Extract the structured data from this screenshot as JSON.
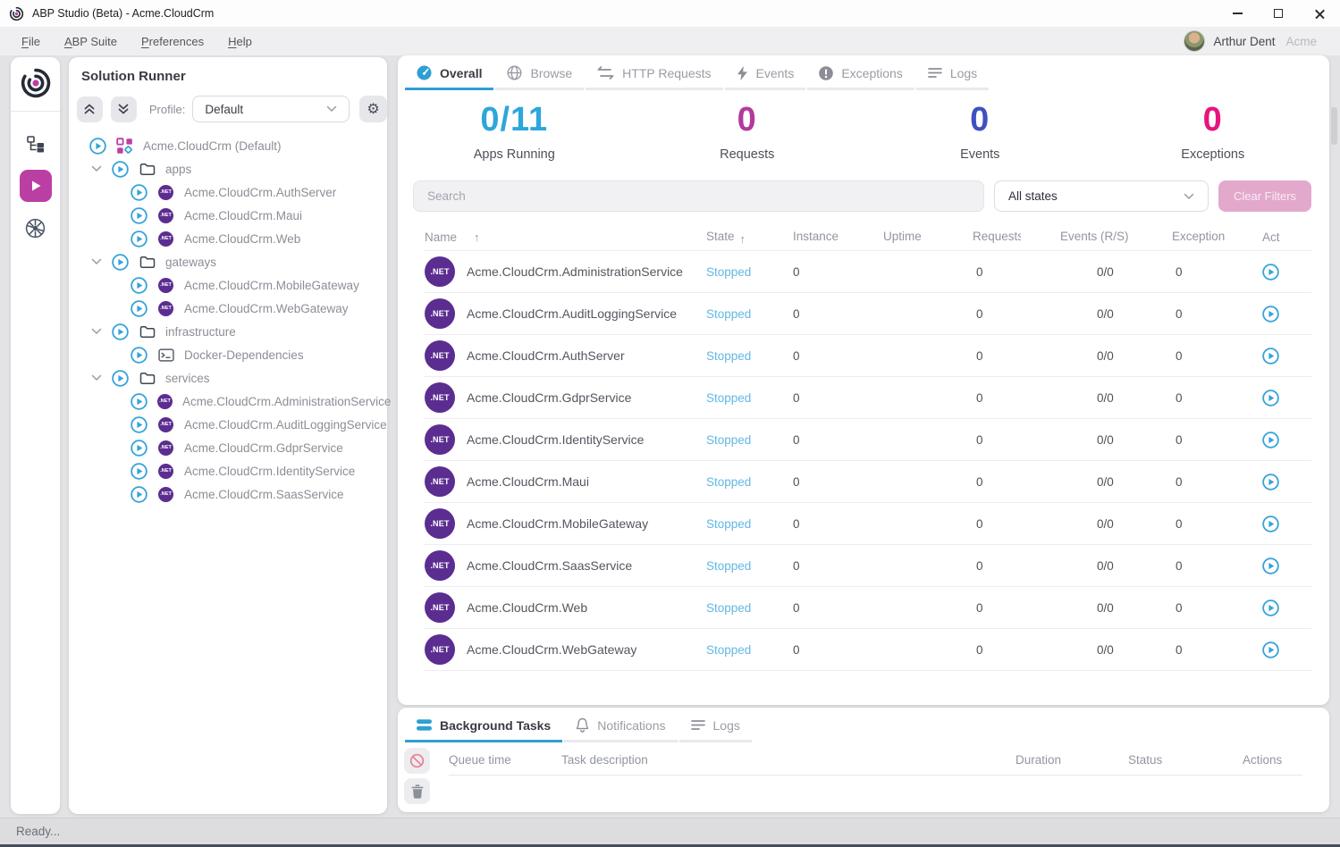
{
  "window": {
    "title": "ABP Studio (Beta) - Acme.CloudCrm",
    "controls": [
      "minimize",
      "maximize",
      "close"
    ]
  },
  "menubar": {
    "items": [
      {
        "label": "File"
      },
      {
        "label": "ABP Suite"
      },
      {
        "label": "Preferences"
      },
      {
        "label": "Help"
      }
    ],
    "user": {
      "name": "Arthur Dent",
      "tenant": "Acme"
    }
  },
  "rail": {
    "icons": [
      "abp-logo",
      "solution-explorer",
      "solution-runner",
      "kubernetes"
    ]
  },
  "solution_runner": {
    "title": "Solution Runner",
    "profile_label": "Profile:",
    "profile_value": "Default",
    "root": {
      "label": "Acme.CloudCrm (Default)",
      "icon": "grid-icon"
    },
    "groups": [
      {
        "label": "apps",
        "icon": "folder-icon",
        "expanded": true,
        "children": [
          {
            "label": "Acme.CloudCrm.AuthServer",
            "icon": "dotnet-icon"
          },
          {
            "label": "Acme.CloudCrm.Maui",
            "icon": "dotnet-icon"
          },
          {
            "label": "Acme.CloudCrm.Web",
            "icon": "dotnet-icon"
          }
        ]
      },
      {
        "label": "gateways",
        "icon": "folder-icon",
        "expanded": true,
        "children": [
          {
            "label": "Acme.CloudCrm.MobileGateway",
            "icon": "dotnet-icon"
          },
          {
            "label": "Acme.CloudCrm.WebGateway",
            "icon": "dotnet-icon"
          }
        ]
      },
      {
        "label": "infrastructure",
        "icon": "folder-icon",
        "expanded": true,
        "children": [
          {
            "label": "Docker-Dependencies",
            "icon": "terminal-icon"
          }
        ]
      },
      {
        "label": "services",
        "icon": "folder-icon",
        "expanded": true,
        "children": [
          {
            "label": "Acme.CloudCrm.AdministrationService",
            "icon": "dotnet-icon"
          },
          {
            "label": "Acme.CloudCrm.AuditLoggingService",
            "icon": "dotnet-icon"
          },
          {
            "label": "Acme.CloudCrm.GdprService",
            "icon": "dotnet-icon"
          },
          {
            "label": "Acme.CloudCrm.IdentityService",
            "icon": "dotnet-icon"
          },
          {
            "label": "Acme.CloudCrm.SaasService",
            "icon": "dotnet-icon"
          }
        ]
      }
    ]
  },
  "main": {
    "tabs": [
      {
        "label": "Overall",
        "icon": "gauge-icon",
        "active": true
      },
      {
        "label": "Browse",
        "icon": "globe-icon",
        "active": false
      },
      {
        "label": "HTTP Requests",
        "icon": "swap-arrows-icon",
        "active": false
      },
      {
        "label": "Events",
        "icon": "bolt-icon",
        "active": false
      },
      {
        "label": "Exceptions",
        "icon": "alert-icon",
        "active": false
      },
      {
        "label": "Logs",
        "icon": "lines-icon",
        "active": false
      }
    ],
    "stats": [
      {
        "value": "0/11",
        "label": "Apps Running",
        "color": "#2ea6db"
      },
      {
        "value": "0",
        "label": "Requests",
        "color": "#b23a9c"
      },
      {
        "value": "0",
        "label": "Events",
        "color": "#3f51c1"
      },
      {
        "value": "0",
        "label": "Exceptions",
        "color": "#e8137e"
      }
    ],
    "filters": {
      "search_placeholder": "Search",
      "state_filter": "All states",
      "clear_button": "Clear Filters"
    },
    "table": {
      "columns": [
        "Name",
        "State",
        "Instance",
        "Uptime",
        "Requests",
        "Events (R/S)",
        "Exception",
        "Act"
      ],
      "sorted_columns": [
        "Name",
        "State"
      ],
      "dotnet_badge": ".NET",
      "rows": [
        {
          "name": "Acme.CloudCrm.AdministrationService",
          "state": "Stopped",
          "instance": "0",
          "uptime": "",
          "requests": "0",
          "events": "0/0",
          "exceptions": "0"
        },
        {
          "name": "Acme.CloudCrm.AuditLoggingService",
          "state": "Stopped",
          "instance": "0",
          "uptime": "",
          "requests": "0",
          "events": "0/0",
          "exceptions": "0"
        },
        {
          "name": "Acme.CloudCrm.AuthServer",
          "state": "Stopped",
          "instance": "0",
          "uptime": "",
          "requests": "0",
          "events": "0/0",
          "exceptions": "0"
        },
        {
          "name": "Acme.CloudCrm.GdprService",
          "state": "Stopped",
          "instance": "0",
          "uptime": "",
          "requests": "0",
          "events": "0/0",
          "exceptions": "0"
        },
        {
          "name": "Acme.CloudCrm.IdentityService",
          "state": "Stopped",
          "instance": "0",
          "uptime": "",
          "requests": "0",
          "events": "0/0",
          "exceptions": "0"
        },
        {
          "name": "Acme.CloudCrm.Maui",
          "state": "Stopped",
          "instance": "0",
          "uptime": "",
          "requests": "0",
          "events": "0/0",
          "exceptions": "0"
        },
        {
          "name": "Acme.CloudCrm.MobileGateway",
          "state": "Stopped",
          "instance": "0",
          "uptime": "",
          "requests": "0",
          "events": "0/0",
          "exceptions": "0"
        },
        {
          "name": "Acme.CloudCrm.SaasService",
          "state": "Stopped",
          "instance": "0",
          "uptime": "",
          "requests": "0",
          "events": "0/0",
          "exceptions": "0"
        },
        {
          "name": "Acme.CloudCrm.Web",
          "state": "Stopped",
          "instance": "0",
          "uptime": "",
          "requests": "0",
          "events": "0/0",
          "exceptions": "0"
        },
        {
          "name": "Acme.CloudCrm.WebGateway",
          "state": "Stopped",
          "instance": "0",
          "uptime": "",
          "requests": "0",
          "events": "0/0",
          "exceptions": "0"
        }
      ]
    }
  },
  "bottom_panel": {
    "tabs": [
      {
        "label": "Background Tasks",
        "icon": "tasks-icon",
        "active": true
      },
      {
        "label": "Notifications",
        "icon": "bell-icon",
        "active": false
      },
      {
        "label": "Logs",
        "icon": "lines-icon",
        "active": false
      }
    ],
    "columns": [
      "Queue time",
      "Task description",
      "Duration",
      "Status",
      "Actions"
    ]
  },
  "statusbar": {
    "text": "Ready..."
  },
  "colors": {
    "accent_magenta": "#bb3fa3",
    "accent_blue": "#2d9fd4",
    "stopped_state": "#62b8e4",
    "dotnet_purple": "#5c2d91"
  }
}
